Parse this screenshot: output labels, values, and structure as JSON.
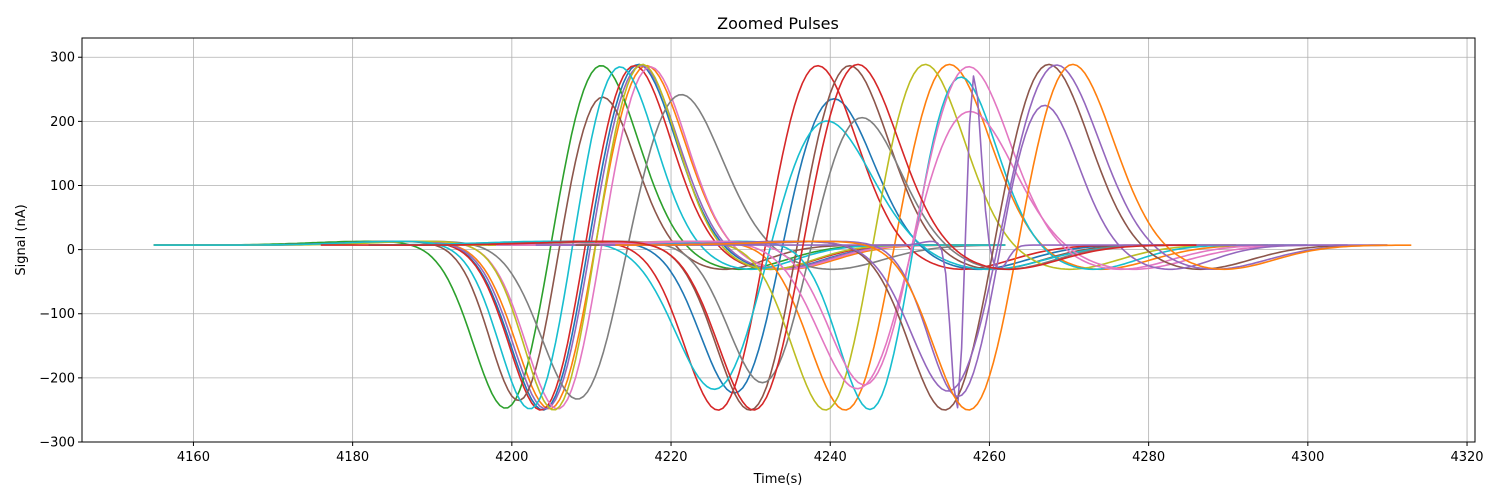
{
  "chart_data": {
    "type": "line",
    "title": "Zoomed Pulses",
    "xlabel": "Time(s)",
    "ylabel": "Signal (nA)",
    "xlim": [
      4146,
      4321
    ],
    "ylim": [
      -300,
      330
    ],
    "xticks": [
      4160,
      4180,
      4200,
      4220,
      4240,
      4260,
      4280,
      4300,
      4320
    ],
    "xtick_labels": [
      "4160",
      "4180",
      "4200",
      "4220",
      "4240",
      "4260",
      "4280",
      "4300",
      "4320"
    ],
    "yticks": [
      -300,
      -200,
      -100,
      0,
      100,
      200,
      300
    ],
    "ytick_labels": [
      "−300",
      "−200",
      "−100",
      "0",
      "100",
      "200",
      "300"
    ],
    "grid": true,
    "series": [
      {
        "color": "#1f77b4",
        "t0": 4155,
        "t1": 4262,
        "tmin": 4204.5,
        "tmax": 4215.5,
        "amin": -270,
        "amax": 300
      },
      {
        "color": "#ff7f0e",
        "t0": 4155,
        "t1": 4262,
        "tmin": 4205.3,
        "tmax": 4216.5,
        "amin": -268,
        "amax": 298
      },
      {
        "color": "#2ca02c",
        "t0": 4155,
        "t1": 4262,
        "tmin": 4199.8,
        "tmax": 4210.8,
        "amin": -267,
        "amax": 298
      },
      {
        "color": "#d62728",
        "t0": 4155,
        "t1": 4262,
        "tmin": 4204.2,
        "tmax": 4215.0,
        "amin": -270,
        "amax": 298
      },
      {
        "color": "#9467bd",
        "t0": 4155,
        "t1": 4262,
        "tmin": 4204.8,
        "tmax": 4215.8,
        "amin": -268,
        "amax": 298
      },
      {
        "color": "#8c564b",
        "t0": 4155,
        "t1": 4262,
        "tmin": 4201.3,
        "tmax": 4211.0,
        "amin": -252,
        "amax": 248
      },
      {
        "color": "#e377c2",
        "t0": 4155,
        "t1": 4262,
        "tmin": 4206.3,
        "tmax": 4217.0,
        "amin": -268,
        "amax": 296
      },
      {
        "color": "#7f7f7f",
        "t0": 4155,
        "t1": 4262,
        "tmin": 4208.8,
        "tmax": 4220.8,
        "amin": -250,
        "amax": 252
      },
      {
        "color": "#bcbd22",
        "t0": 4155,
        "t1": 4262,
        "tmin": 4205.8,
        "tmax": 4216.0,
        "amin": -270,
        "amax": 300
      },
      {
        "color": "#17becf",
        "t0": 4155,
        "t1": 4262,
        "tmin": 4202.8,
        "tmax": 4213.2,
        "amin": -268,
        "amax": 296
      },
      {
        "color": "#1f77b4",
        "t0": 4182,
        "t1": 4282,
        "tmin": 4228.5,
        "tmax": 4240.0,
        "amin": -240,
        "amax": 245
      },
      {
        "color": "#ff7f0e",
        "t0": 4197,
        "t1": 4297,
        "tmin": 4242.5,
        "tmax": 4254.5,
        "amin": -270,
        "amax": 300
      },
      {
        "color": "#d62728",
        "t0": 4184,
        "t1": 4286,
        "tmin": 4226.5,
        "tmax": 4238.0,
        "amin": -270,
        "amax": 298
      },
      {
        "color": "#8c564b",
        "t0": 4189,
        "t1": 4291,
        "tmin": 4230.5,
        "tmax": 4242.0,
        "amin": -270,
        "amax": 298
      },
      {
        "color": "#17becf",
        "t0": 4182,
        "t1": 4282,
        "tmin": 4226.0,
        "tmax": 4239.0,
        "amin": -232,
        "amax": 210
      },
      {
        "color": "#7f7f7f",
        "t0": 4186,
        "t1": 4286,
        "tmin": 4232.0,
        "tmax": 4243.5,
        "amin": -222,
        "amax": 215
      },
      {
        "color": "#bcbd22",
        "t0": 4194,
        "t1": 4295,
        "tmin": 4240.0,
        "tmax": 4251.5,
        "amin": -270,
        "amax": 300
      },
      {
        "color": "#17becf",
        "t0": 4198,
        "t1": 4300,
        "tmin": 4245.5,
        "tmax": 4256.0,
        "amin": -268,
        "amax": 280
      },
      {
        "color": "#e377c2",
        "t0": 4200,
        "t1": 4300,
        "tmin": 4245.0,
        "tmax": 4257.0,
        "amin": -230,
        "amax": 295
      },
      {
        "color": "#e377c2",
        "t0": 4198,
        "t1": 4300,
        "tmin": 4244.0,
        "tmax": 4257.0,
        "amin": -232,
        "amax": 225
      },
      {
        "color": "#9467bd",
        "t0": 4203,
        "t1": 4305,
        "tmin": 4256.0,
        "tmax": 4258.0,
        "amin": -268,
        "amax": 283
      },
      {
        "color": "#8c564b",
        "t0": 4208,
        "t1": 4310,
        "tmin": 4255.0,
        "tmax": 4267.0,
        "amin": -270,
        "amax": 300
      },
      {
        "color": "#9467bd",
        "t0": 4211,
        "t1": 4310,
        "tmin": 4255.5,
        "tmax": 4268.0,
        "amin": -240,
        "amax": 298
      },
      {
        "color": "#9467bd",
        "t0": 4212,
        "t1": 4310,
        "tmin": 4256.5,
        "tmax": 4266.5,
        "amin": -245,
        "amax": 235
      },
      {
        "color": "#ff7f0e",
        "t0": 4213,
        "t1": 4313,
        "tmin": 4258.0,
        "tmax": 4270.0,
        "amin": -270,
        "amax": 300
      },
      {
        "color": "#d62728",
        "t0": 4176,
        "t1": 4286,
        "tmin": 4231.0,
        "tmax": 4243.0,
        "amin": -270,
        "amax": 300
      }
    ]
  }
}
